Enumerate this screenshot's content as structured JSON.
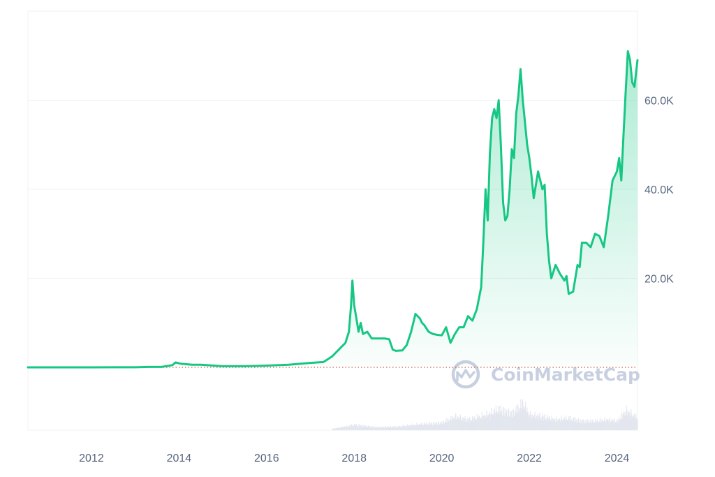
{
  "watermark": {
    "text": "CoinMarketCap",
    "logo": "coinmarketcap-logo-icon"
  },
  "colors": {
    "line": "#16c784",
    "area_top": "#16c784",
    "grid": "#eff2f5",
    "baseline_dotted": "#d9534f",
    "volume": "#e3e7ee",
    "tick_text": "#58667e"
  },
  "chart_data": {
    "type": "area",
    "title": "",
    "xlabel": "",
    "ylabel": "",
    "x_ticks": [
      "2012",
      "2014",
      "2016",
      "2018",
      "2020",
      "2022",
      "2024"
    ],
    "y_ticks": [
      "20.0K",
      "40.0K",
      "60.0K"
    ],
    "y_tick_values": [
      20000,
      40000,
      60000
    ],
    "xlim": [
      2010.55,
      2024.47
    ],
    "ylim": [
      0,
      80000
    ],
    "y_axis_position": "right",
    "grid": "horizontal",
    "legend": "none",
    "series": [
      {
        "x": [
          2010.55,
          2011.0,
          2011.5,
          2012.0,
          2012.5,
          2013.0,
          2013.3,
          2013.6,
          2013.85,
          2013.92,
          2014.05,
          2014.3,
          2014.5,
          2014.8,
          2015.0,
          2015.5,
          2016.0,
          2016.5,
          2017.0,
          2017.3,
          2017.5,
          2017.7,
          2017.8,
          2017.88,
          2017.93,
          2017.96,
          2018.0,
          2018.05,
          2018.1,
          2018.15,
          2018.2,
          2018.3,
          2018.4,
          2018.5,
          2018.6,
          2018.7,
          2018.8,
          2018.88,
          2018.95,
          2019.1,
          2019.2,
          2019.3,
          2019.4,
          2019.5,
          2019.55,
          2019.6,
          2019.7,
          2019.8,
          2019.9,
          2020.0,
          2020.1,
          2020.2,
          2020.25,
          2020.3,
          2020.4,
          2020.5,
          2020.6,
          2020.7,
          2020.8,
          2020.9,
          2020.95,
          2021.0,
          2021.05,
          2021.1,
          2021.15,
          2021.2,
          2021.25,
          2021.3,
          2021.35,
          2021.4,
          2021.45,
          2021.5,
          2021.55,
          2021.6,
          2021.65,
          2021.7,
          2021.75,
          2021.8,
          2021.85,
          2021.88,
          2021.95,
          2022.0,
          2022.05,
          2022.1,
          2022.2,
          2022.3,
          2022.35,
          2022.4,
          2022.45,
          2022.5,
          2022.6,
          2022.7,
          2022.8,
          2022.85,
          2022.9,
          2023.0,
          2023.1,
          2023.15,
          2023.2,
          2023.3,
          2023.4,
          2023.5,
          2023.6,
          2023.7,
          2023.8,
          2023.9,
          2024.0,
          2024.05,
          2024.1,
          2024.15,
          2024.2,
          2024.25,
          2024.3,
          2024.35,
          2024.4,
          2024.47
        ],
        "y": [
          0,
          5,
          5,
          5,
          10,
          20,
          100,
          100,
          500,
          1100,
          800,
          600,
          600,
          400,
          250,
          250,
          400,
          600,
          1000,
          1200,
          2500,
          4500,
          5500,
          8000,
          14000,
          19500,
          14000,
          11000,
          8000,
          10000,
          7500,
          8000,
          6500,
          6500,
          6500,
          6500,
          6300,
          4000,
          3700,
          3800,
          5000,
          8000,
          12000,
          11000,
          10000,
          9500,
          8000,
          7500,
          7300,
          7200,
          9000,
          5500,
          6500,
          7500,
          9000,
          9000,
          11500,
          10500,
          13000,
          18000,
          28000,
          40000,
          33000,
          48000,
          56000,
          58000,
          56000,
          60000,
          50000,
          37000,
          33000,
          34000,
          40000,
          49000,
          47000,
          57000,
          61000,
          67000,
          60000,
          57000,
          50000,
          47000,
          43000,
          38000,
          44000,
          40000,
          41000,
          30000,
          24000,
          20000,
          23000,
          21000,
          19500,
          20500,
          16500,
          17000,
          23000,
          22500,
          28000,
          28000,
          27000,
          30000,
          29500,
          27000,
          34000,
          42000,
          44000,
          47000,
          42000,
          52000,
          62000,
          71000,
          69000,
          64000,
          63000,
          69000
        ]
      }
    ],
    "volume": {
      "x": [
        2017.5,
        2017.8,
        2018.0,
        2018.5,
        2019.0,
        2019.5,
        2020.0,
        2020.3,
        2020.6,
        2021.0,
        2021.3,
        2021.6,
        2021.85,
        2022.0,
        2022.3,
        2022.6,
        2022.9,
        2023.2,
        2023.5,
        2023.8,
        2024.0,
        2024.2,
        2024.47
      ],
      "values": [
        0.05,
        0.12,
        0.18,
        0.1,
        0.12,
        0.2,
        0.25,
        0.45,
        0.35,
        0.5,
        0.7,
        0.55,
        0.9,
        0.5,
        0.45,
        0.35,
        0.4,
        0.3,
        0.3,
        0.35,
        0.3,
        0.65,
        0.4
      ]
    }
  }
}
